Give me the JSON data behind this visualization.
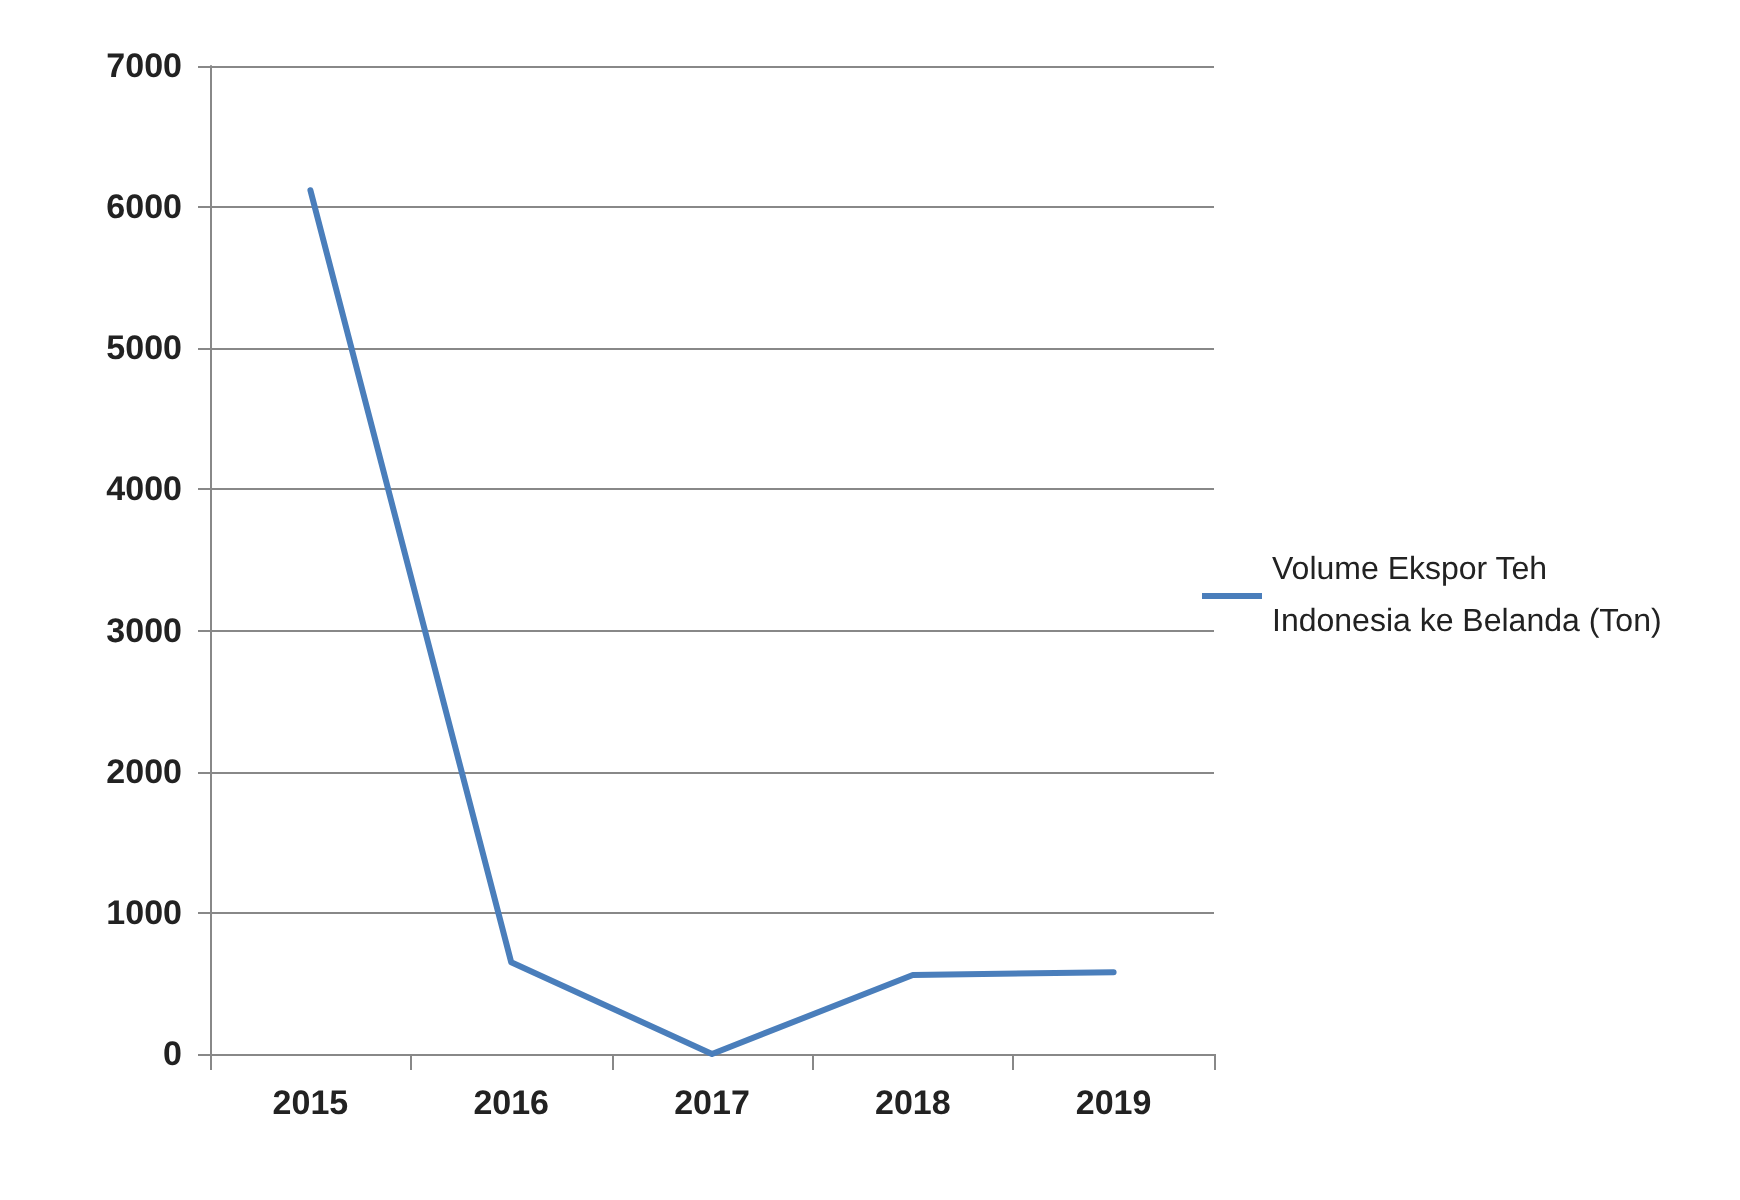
{
  "chart_data": {
    "type": "line",
    "categories": [
      "2015",
      "2016",
      "2017",
      "2018",
      "2019"
    ],
    "series": [
      {
        "name": "Volume Ekspor Teh Indonesia ke Belanda (Ton)",
        "color": "#4a7ebb",
        "values": [
          6120,
          650,
          0,
          560,
          580
        ]
      }
    ],
    "ylim": [
      0,
      7000
    ],
    "yticks": [
      0,
      1000,
      2000,
      3000,
      4000,
      5000,
      6000,
      7000
    ],
    "grid": "y",
    "legend": "right",
    "marker": "none",
    "line_style": "solid"
  }
}
